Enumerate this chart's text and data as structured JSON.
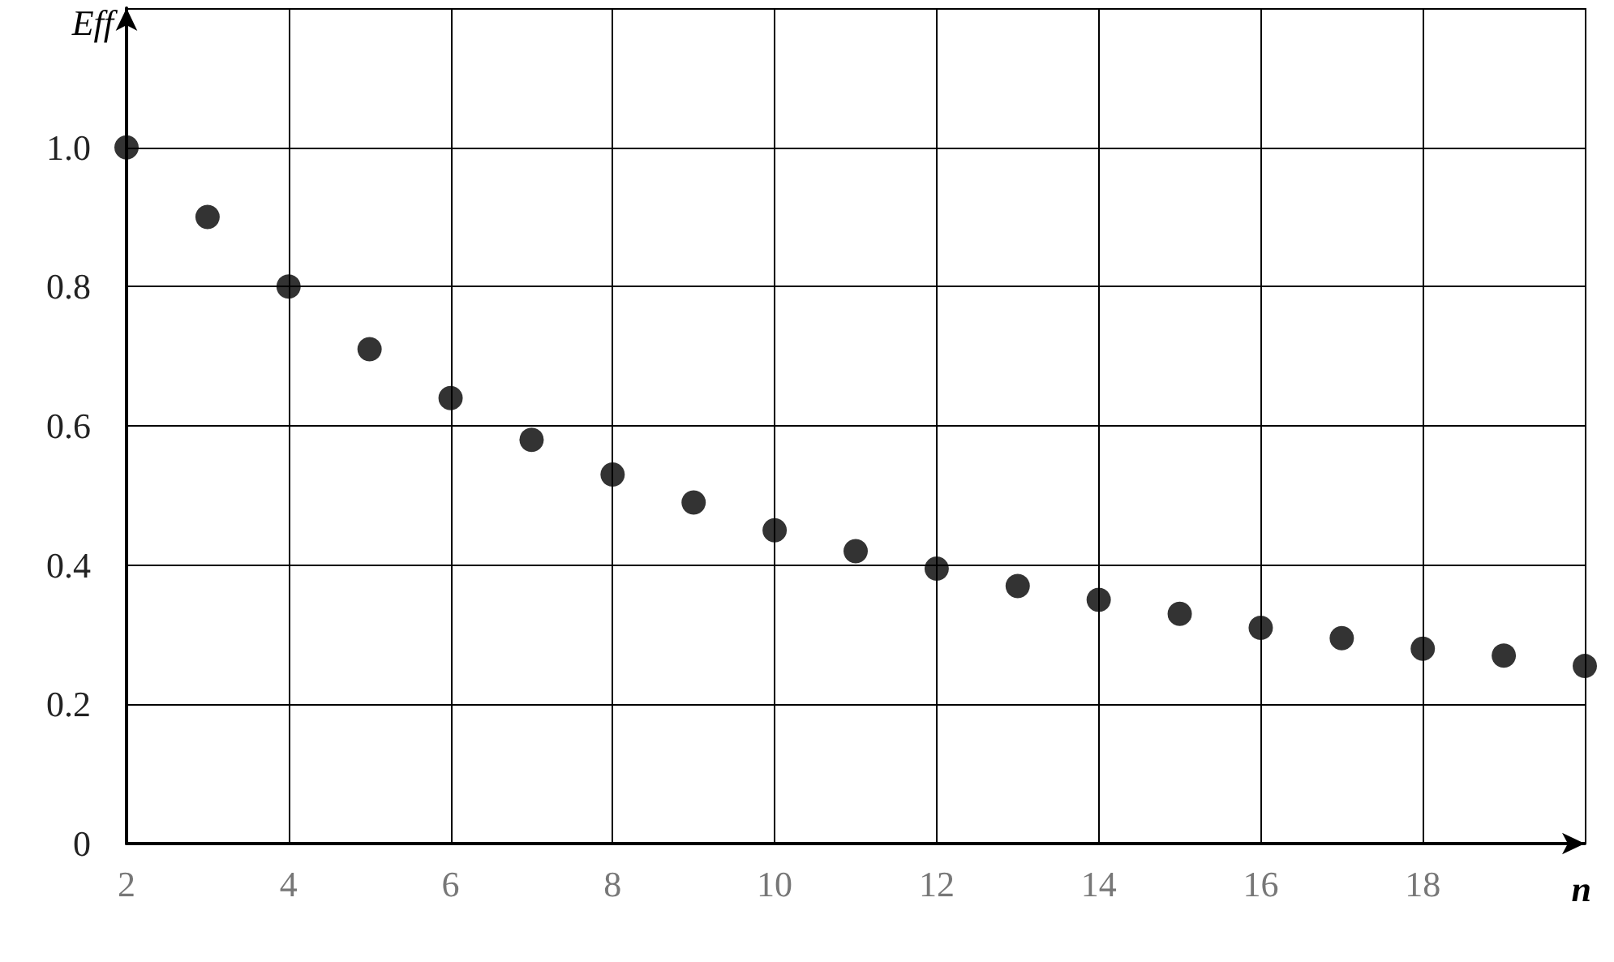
{
  "chart_data": {
    "type": "scatter",
    "xlabel": "n",
    "ylabel": "Eff",
    "x": [
      2,
      3,
      4,
      5,
      6,
      7,
      8,
      9,
      10,
      11,
      12,
      13,
      14,
      15,
      16,
      17,
      18,
      19,
      20
    ],
    "values": [
      1.0,
      0.9,
      0.8,
      0.71,
      0.64,
      0.58,
      0.53,
      0.49,
      0.45,
      0.42,
      0.395,
      0.37,
      0.35,
      0.33,
      0.31,
      0.295,
      0.28,
      0.27,
      0.255
    ],
    "color": "#000000",
    "marker": "circle",
    "xlim": [
      2,
      20
    ],
    "xticks": [
      2,
      4,
      6,
      8,
      10,
      12,
      14,
      16,
      18,
      {
        "value": 20,
        "label": null
      }
    ],
    "ylim": [
      0,
      1.2
    ],
    "yticks": [
      0,
      0.2,
      0.4,
      0.6,
      0.8,
      {
        "value": 1,
        "label": "1.0"
      },
      {
        "value": 1.2,
        "label": null
      }
    ],
    "grid": true
  }
}
